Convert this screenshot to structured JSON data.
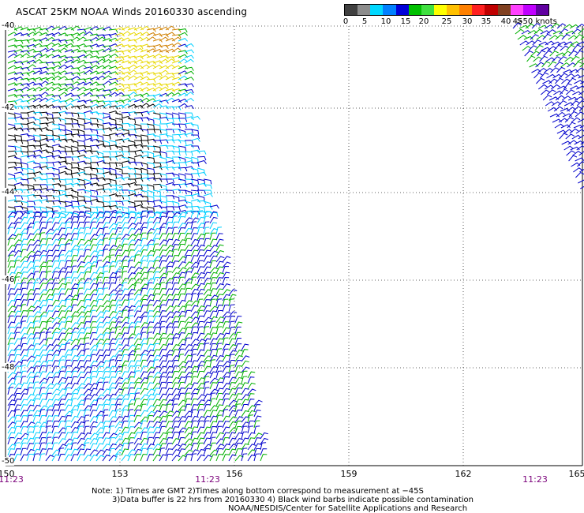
{
  "title": "ASCAT 25KM NOAA Winds 20160330 ascending",
  "legend": {
    "colors": [
      "#404040",
      "#8c8c8c",
      "#00d8ff",
      "#0080ff",
      "#0000d8",
      "#00c000",
      "#40e040",
      "#ffff00",
      "#ffc000",
      "#ff8000",
      "#ff2020",
      "#c00000",
      "#804020",
      "#ff40ff",
      "#c000ff",
      "#6000a0"
    ],
    "ticks": [
      "0",
      "5",
      "10",
      "15",
      "20",
      "25",
      "30",
      "35",
      "40",
      "45",
      ">50 knots"
    ]
  },
  "latitude_labels": [
    "-40",
    "-42",
    "-44",
    "-46",
    "-48",
    "-50"
  ],
  "longitude_labels": [
    "150",
    "153",
    "156",
    "159",
    "162",
    "165"
  ],
  "time_labels": [
    "11:23",
    "11:23",
    "11:23"
  ],
  "notes": [
    "Note: 1) Times are GMT 2)Times along bottom correspond to measurement at −45S",
    "3)Data buffer is 22 hrs from 20160330 4) Black wind barbs indicate possible contamination",
    "NOAA/NESDIS/Center for Satellite Applications and Research"
  ],
  "swath_colors": {
    "contaminated": "#000000",
    "light": "#00d0ff",
    "moderate": "#0000cc",
    "fresh": "#00b000",
    "strong": "#e8d800",
    "gale": "#d08000"
  }
}
